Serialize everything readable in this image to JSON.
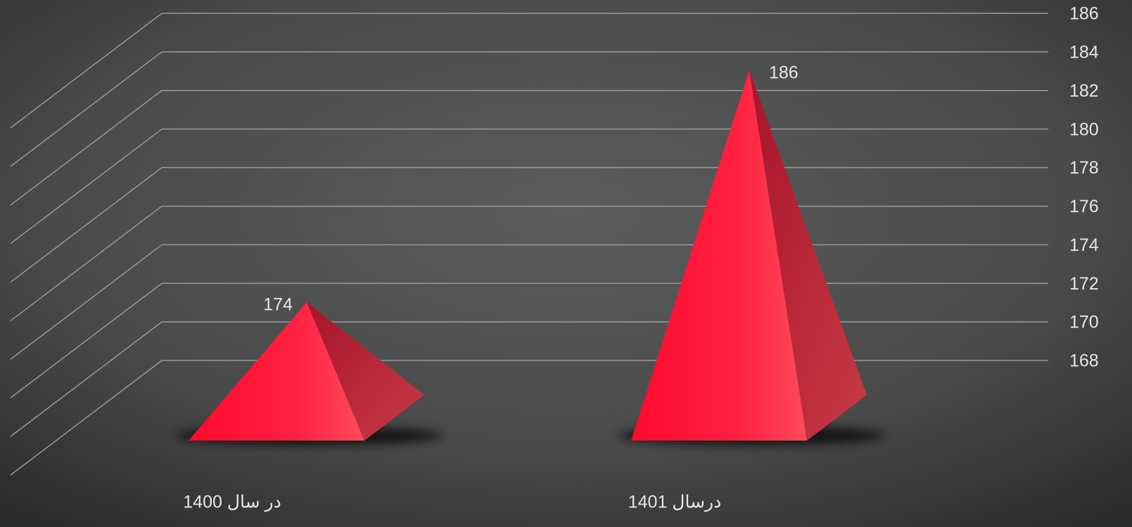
{
  "chart_data": {
    "type": "pyramid",
    "categories": [
      "در سال 1400",
      "درسال 1401"
    ],
    "values": [
      174,
      186
    ],
    "color": "#ff1436",
    "ylim": [
      168,
      186
    ],
    "yticks": [
      168,
      170,
      172,
      174,
      176,
      178,
      180,
      182,
      184,
      186
    ],
    "grid": true
  }
}
